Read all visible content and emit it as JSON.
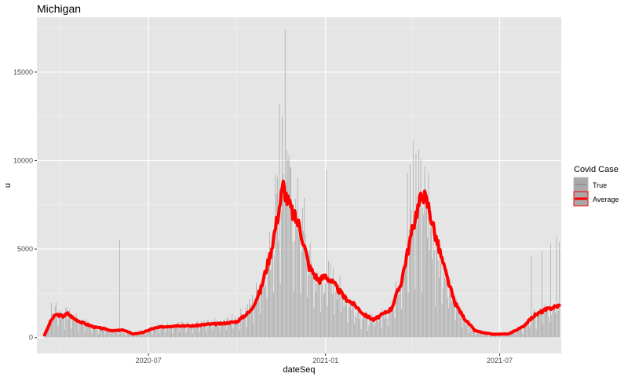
{
  "chart_data": {
    "type": "bar",
    "title": "Michigan",
    "xlabel": "dateSeq",
    "ylabel": "u",
    "x_range": [
      "2020-03-07",
      "2021-09-03"
    ],
    "ylim": [
      -900,
      18100
    ],
    "y_ticks": [
      0,
      5000,
      10000,
      15000
    ],
    "y_tick_labels": [
      "0",
      "5000",
      "10000",
      "15000"
    ],
    "x_ticks": [
      "2020-07-01",
      "2021-01-01",
      "2021-07-01"
    ],
    "x_tick_labels": [
      "2020-07",
      "2021-01",
      "2021-07"
    ],
    "grid": true,
    "legend": {
      "title": "Covid Case",
      "placement": "right",
      "entries": [
        {
          "label": "True",
          "color": "#a9a9a9"
        },
        {
          "label": "Average",
          "color": "#ff0000"
        }
      ]
    },
    "colors": {
      "bars": "#a9a9a9",
      "average_line": "#ff0000",
      "panel": "#e5e5e5",
      "grid": "#ffffff"
    },
    "series": [
      {
        "name": "True",
        "kind": "daily_bars",
        "start_date": "2020-03-15",
        "anchors": [
          [
            "2020-03-15",
            300
          ],
          [
            "2020-03-20",
            900
          ],
          [
            "2020-03-25",
            1500
          ],
          [
            "2020-04-01",
            1400
          ],
          [
            "2020-04-08",
            1300
          ],
          [
            "2020-04-15",
            1100
          ],
          [
            "2020-04-25",
            850
          ],
          [
            "2020-05-05",
            650
          ],
          [
            "2020-05-15",
            500
          ],
          [
            "2020-05-25",
            420
          ],
          [
            "2020-06-05",
            280
          ],
          [
            "2020-06-15",
            200
          ],
          [
            "2020-06-25",
            300
          ],
          [
            "2020-07-05",
            550
          ],
          [
            "2020-07-15",
            700
          ],
          [
            "2020-08-01",
            750
          ],
          [
            "2020-08-15",
            720
          ],
          [
            "2020-09-01",
            800
          ],
          [
            "2020-09-15",
            850
          ],
          [
            "2020-10-01",
            1100
          ],
          [
            "2020-10-15",
            1800
          ],
          [
            "2020-10-25",
            3000
          ],
          [
            "2020-11-05",
            5000
          ],
          [
            "2020-11-12",
            7500
          ],
          [
            "2020-11-20",
            8300
          ],
          [
            "2020-11-28",
            7200
          ],
          [
            "2020-12-05",
            6500
          ],
          [
            "2020-12-15",
            4300
          ],
          [
            "2020-12-25",
            3000
          ],
          [
            "2021-01-05",
            3500
          ],
          [
            "2021-01-15",
            2800
          ],
          [
            "2021-01-25",
            2000
          ],
          [
            "2021-02-05",
            1500
          ],
          [
            "2021-02-15",
            1000
          ],
          [
            "2021-02-25",
            1200
          ],
          [
            "2021-03-05",
            1400
          ],
          [
            "2021-03-15",
            2500
          ],
          [
            "2021-03-25",
            5000
          ],
          [
            "2021-04-01",
            6800
          ],
          [
            "2021-04-08",
            7600
          ],
          [
            "2021-04-15",
            7200
          ],
          [
            "2021-04-25",
            5500
          ],
          [
            "2021-05-05",
            3500
          ],
          [
            "2021-05-15",
            2000
          ],
          [
            "2021-05-25",
            1000
          ],
          [
            "2021-06-05",
            400
          ],
          [
            "2021-06-15",
            250
          ],
          [
            "2021-06-25",
            150
          ],
          [
            "2021-07-10",
            200
          ],
          [
            "2021-07-25",
            600
          ],
          [
            "2021-08-05",
            1200
          ],
          [
            "2021-08-15",
            1500
          ],
          [
            "2021-08-25",
            1700
          ],
          [
            "2021-09-01",
            1800
          ]
        ],
        "spikes": [
          [
            "2020-03-22",
            1950
          ],
          [
            "2020-03-27",
            2000
          ],
          [
            "2020-06-01",
            5500
          ],
          [
            "2020-11-10",
            9200
          ],
          [
            "2020-11-14",
            13200
          ],
          [
            "2020-11-17",
            12500
          ],
          [
            "2020-11-20",
            17400
          ],
          [
            "2020-11-22",
            10600
          ],
          [
            "2020-11-24",
            10300
          ],
          [
            "2020-11-26",
            9600
          ],
          [
            "2020-12-03",
            9000
          ],
          [
            "2020-12-10",
            7900
          ],
          [
            "2021-01-02",
            9500
          ],
          [
            "2021-03-27",
            9300
          ],
          [
            "2021-03-30",
            9800
          ],
          [
            "2021-04-02",
            11100
          ],
          [
            "2021-04-05",
            10400
          ],
          [
            "2021-04-08",
            10600
          ],
          [
            "2021-04-10",
            10100
          ],
          [
            "2021-04-14",
            9700
          ],
          [
            "2021-04-18",
            9300
          ],
          [
            "2021-08-03",
            4600
          ],
          [
            "2021-08-14",
            4900
          ],
          [
            "2021-08-23",
            5300
          ],
          [
            "2021-08-29",
            5700
          ],
          [
            "2021-09-01",
            5400
          ]
        ]
      },
      {
        "name": "Average",
        "kind": "rolling_line",
        "values": [
          [
            "2020-03-15",
            150
          ],
          [
            "2020-03-18",
            500
          ],
          [
            "2020-03-22",
            1000
          ],
          [
            "2020-03-27",
            1300
          ],
          [
            "2020-04-03",
            1200
          ],
          [
            "2020-04-08",
            1350
          ],
          [
            "2020-04-15",
            1050
          ],
          [
            "2020-04-25",
            800
          ],
          [
            "2020-05-05",
            600
          ],
          [
            "2020-05-15",
            500
          ],
          [
            "2020-05-25",
            380
          ],
          [
            "2020-06-05",
            420
          ],
          [
            "2020-06-15",
            200
          ],
          [
            "2020-06-25",
            280
          ],
          [
            "2020-07-05",
            500
          ],
          [
            "2020-07-15",
            600
          ],
          [
            "2020-08-01",
            680
          ],
          [
            "2020-08-15",
            650
          ],
          [
            "2020-09-01",
            750
          ],
          [
            "2020-09-15",
            780
          ],
          [
            "2020-10-01",
            900
          ],
          [
            "2020-10-15",
            1500
          ],
          [
            "2020-10-25",
            2600
          ],
          [
            "2020-11-05",
            4800
          ],
          [
            "2020-11-12",
            6800
          ],
          [
            "2020-11-18",
            8600
          ],
          [
            "2020-11-22",
            7800
          ],
          [
            "2020-11-28",
            7000
          ],
          [
            "2020-12-05",
            6300
          ],
          [
            "2020-12-15",
            4000
          ],
          [
            "2020-12-25",
            3200
          ],
          [
            "2021-01-01",
            3500
          ],
          [
            "2021-01-10",
            3000
          ],
          [
            "2021-01-20",
            2300
          ],
          [
            "2021-02-01",
            1800
          ],
          [
            "2021-02-10",
            1300
          ],
          [
            "2021-02-20",
            1000
          ],
          [
            "2021-03-01",
            1300
          ],
          [
            "2021-03-10",
            1600
          ],
          [
            "2021-03-20",
            3000
          ],
          [
            "2021-03-28",
            5000
          ],
          [
            "2021-04-05",
            7000
          ],
          [
            "2021-04-12",
            8200
          ],
          [
            "2021-04-18",
            7400
          ],
          [
            "2021-04-25",
            5800
          ],
          [
            "2021-05-05",
            3800
          ],
          [
            "2021-05-15",
            2000
          ],
          [
            "2021-05-25",
            1100
          ],
          [
            "2021-06-05",
            400
          ],
          [
            "2021-06-15",
            250
          ],
          [
            "2021-06-25",
            180
          ],
          [
            "2021-07-10",
            200
          ],
          [
            "2021-07-25",
            600
          ],
          [
            "2021-08-05",
            1200
          ],
          [
            "2021-08-15",
            1500
          ],
          [
            "2021-08-25",
            1700
          ],
          [
            "2021-09-01",
            1800
          ]
        ]
      }
    ]
  }
}
